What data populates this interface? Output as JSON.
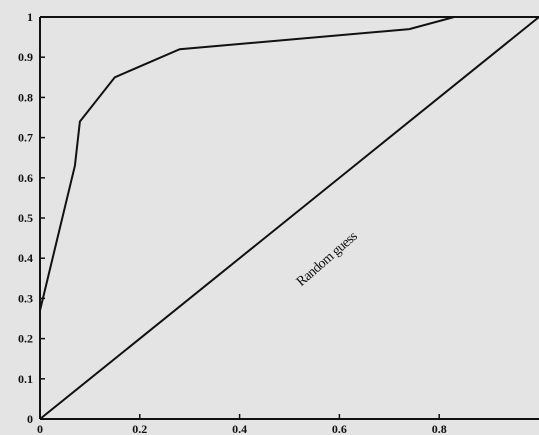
{
  "chart_data": {
    "type": "line",
    "title": "",
    "xlabel": "",
    "ylabel": "",
    "xlim": [
      0,
      1
    ],
    "ylim": [
      0,
      1
    ],
    "grid": false,
    "x_ticks": [
      "0",
      "0.2",
      "0.4",
      "0.6",
      "0.8"
    ],
    "y_ticks": [
      "0",
      "0.1",
      "0.2",
      "0.3",
      "0.4",
      "0.5",
      "0.6",
      "0.7",
      "0.8",
      "0.9",
      "1"
    ],
    "series": [
      {
        "color": "#111111",
        "x": [
          0,
          0.07,
          0.08,
          0.15,
          0.28,
          0.74,
          0.83,
          1.0
        ],
        "y": [
          0.27,
          0.63,
          0.74,
          0.85,
          0.92,
          0.97,
          1.0,
          1.0
        ]
      },
      {
        "color": "#111111",
        "x": [
          0,
          1
        ],
        "y": [
          0,
          1
        ]
      }
    ],
    "annotations": [
      {
        "text": "Random guess",
        "x": 0.58,
        "y": 0.39
      }
    ]
  }
}
